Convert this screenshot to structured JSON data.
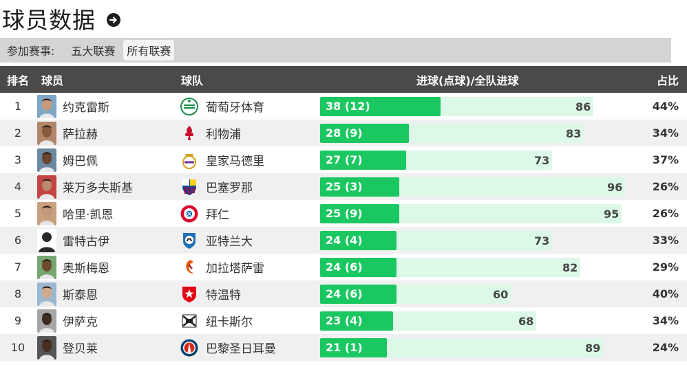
{
  "page": {
    "title": "球员数据",
    "title_action_icon": "arrow-right-circle-icon"
  },
  "filter": {
    "label": "参加赛事:",
    "options": [
      "五大联赛",
      "所有联赛"
    ],
    "active": "所有联赛"
  },
  "table": {
    "headers": {
      "rank": "排名",
      "player": "球员",
      "team": "球队",
      "goals": "进球(点球)/全队进球",
      "pct": "占比"
    },
    "max_team_goals": 96,
    "rows": [
      {
        "rank": "1",
        "player": "约克雷斯",
        "team": "葡萄牙体育",
        "goals_label": "38 (12)",
        "goals": 38,
        "team_goals": 86,
        "pct": "44%",
        "team_logo": "sporting-cp-logo",
        "logo_color": "#1a8f4a"
      },
      {
        "rank": "2",
        "player": "萨拉赫",
        "team": "利物浦",
        "goals_label": "28 (9)",
        "goals": 28,
        "team_goals": 83,
        "pct": "34%",
        "team_logo": "liverpool-logo",
        "logo_color": "#c8102e"
      },
      {
        "rank": "3",
        "player": "姆巴佩",
        "team": "皇家马德里",
        "goals_label": "27 (7)",
        "goals": 27,
        "team_goals": 73,
        "pct": "37%",
        "team_logo": "real-madrid-logo",
        "logo_color": "#d4a017"
      },
      {
        "rank": "4",
        "player": "莱万多夫斯基",
        "team": "巴塞罗那",
        "goals_label": "25 (3)",
        "goals": 25,
        "team_goals": 96,
        "pct": "26%",
        "team_logo": "barcelona-logo",
        "logo_color": "#a50044"
      },
      {
        "rank": "5",
        "player": "哈里·凯恩",
        "team": "拜仁",
        "goals_label": "25 (9)",
        "goals": 25,
        "team_goals": 95,
        "pct": "26%",
        "team_logo": "bayern-logo",
        "logo_color": "#dc052d"
      },
      {
        "rank": "6",
        "player": "雷特古伊",
        "team": "亚特兰大",
        "goals_label": "24 (4)",
        "goals": 24,
        "team_goals": 73,
        "pct": "33%",
        "team_logo": "atalanta-logo",
        "logo_color": "#1e71b8"
      },
      {
        "rank": "7",
        "player": "奥斯梅恩",
        "team": "加拉塔萨雷",
        "goals_label": "24 (6)",
        "goals": 24,
        "team_goals": 82,
        "pct": "29%",
        "team_logo": "galatasaray-logo",
        "logo_color": "#e45d10"
      },
      {
        "rank": "8",
        "player": "斯泰恩",
        "team": "特温特",
        "goals_label": "24 (6)",
        "goals": 24,
        "team_goals": 60,
        "pct": "40%",
        "team_logo": "twente-logo",
        "logo_color": "#e30613"
      },
      {
        "rank": "9",
        "player": "伊萨克",
        "team": "纽卡斯尔",
        "goals_label": "23 (4)",
        "goals": 23,
        "team_goals": 68,
        "pct": "34%",
        "team_logo": "newcastle-logo",
        "logo_color": "#222222"
      },
      {
        "rank": "10",
        "player": "登贝莱",
        "team": "巴黎圣日耳曼",
        "goals_label": "21 (1)",
        "goals": 21,
        "team_goals": 89,
        "pct": "24%",
        "team_logo": "psg-logo",
        "logo_color": "#004170"
      }
    ]
  },
  "colors": {
    "goal_bar": "#1bc761",
    "team_bar": "#dcf8e7",
    "header_bg": "#4a4a4a"
  }
}
